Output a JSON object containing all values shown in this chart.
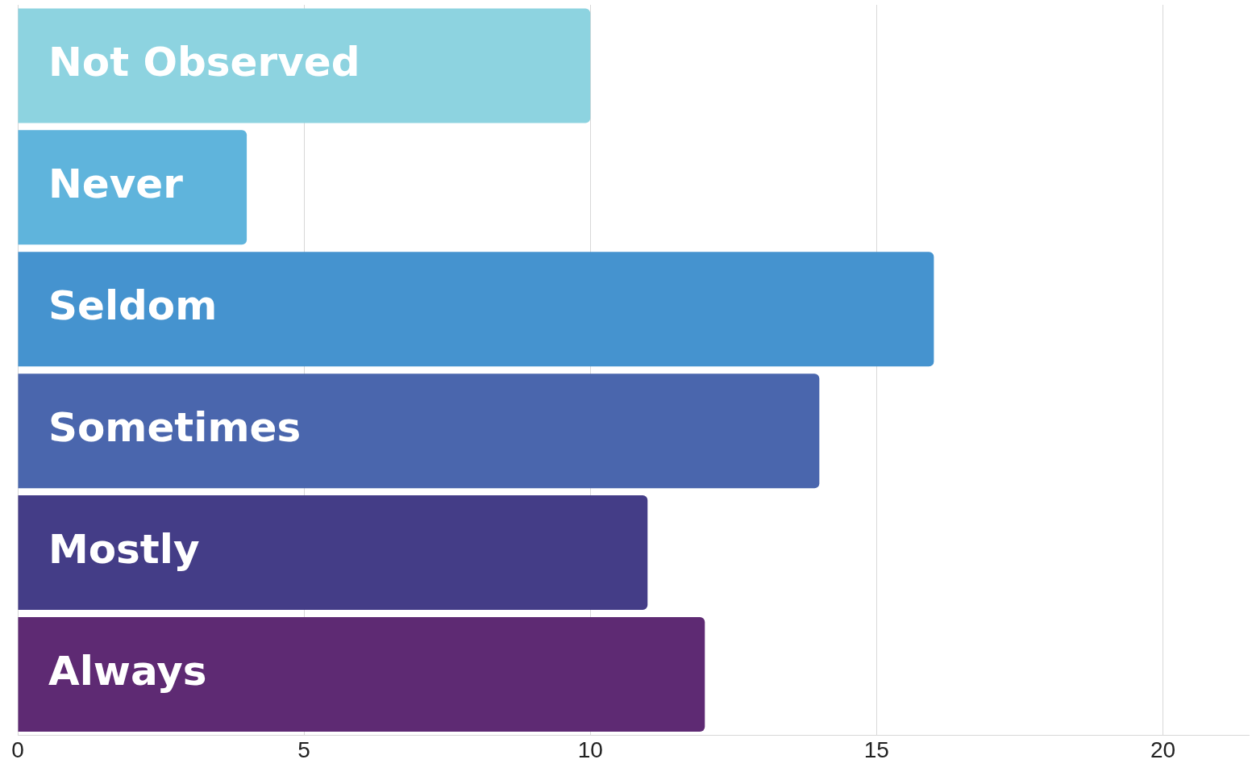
{
  "chart_data": {
    "type": "bar",
    "orientation": "horizontal",
    "categories": [
      "Not Observed",
      "Never",
      "Seldom",
      "Sometimes",
      "Mostly",
      "Always"
    ],
    "values": [
      10,
      4,
      16,
      14,
      11,
      12
    ],
    "colors": [
      "#8dd3e0",
      "#5fb4dc",
      "#4593cf",
      "#4a66ad",
      "#443d87",
      "#5e2a73"
    ],
    "xlim": [
      0,
      21.5
    ],
    "xticks": [
      0,
      5,
      10,
      15,
      20
    ],
    "grid": "x",
    "legend": false
  }
}
